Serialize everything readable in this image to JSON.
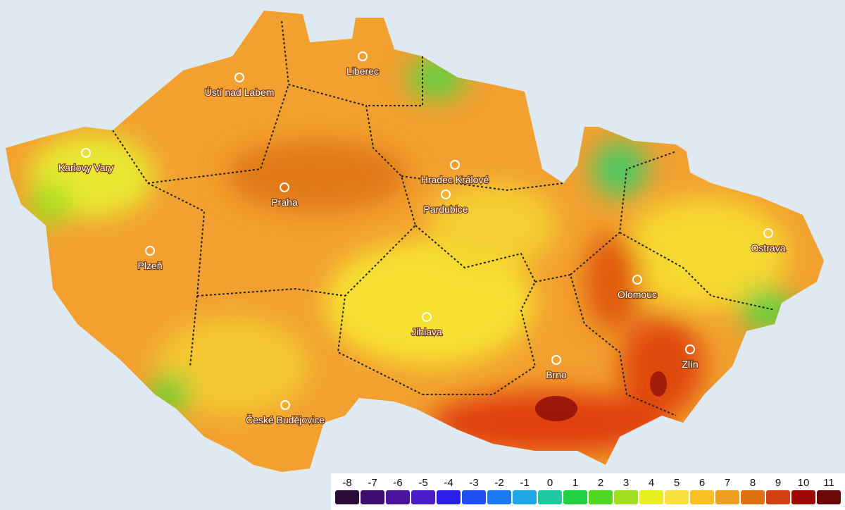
{
  "cities": [
    {
      "name": "Liberec"
    },
    {
      "name": "Ústí nad Labem"
    },
    {
      "name": "Karlovy Vary"
    },
    {
      "name": "Praha"
    },
    {
      "name": "Hradec Králové"
    },
    {
      "name": "Pardubice"
    },
    {
      "name": "Plzeň"
    },
    {
      "name": "Ostrava"
    },
    {
      "name": "Olomouc"
    },
    {
      "name": "Jihlava"
    },
    {
      "name": "Brno"
    },
    {
      "name": "Zlín"
    },
    {
      "name": "České Budějovice"
    }
  ],
  "legend": {
    "ticks": [
      -8,
      -7,
      -6,
      -5,
      -4,
      -3,
      -2,
      -1,
      0,
      1,
      2,
      3,
      4,
      5,
      6,
      7,
      8,
      9,
      10,
      11
    ],
    "colors": [
      "#2a0a3a",
      "#3d0c6e",
      "#4b12a0",
      "#4a1cc8",
      "#2a1fe8",
      "#1e4ef0",
      "#1a78f0",
      "#1ea8e8",
      "#1ec8a0",
      "#20d040",
      "#50d820",
      "#a0e020",
      "#e8f020",
      "#f8e040",
      "#f8c020",
      "#f0a020",
      "#e07010",
      "#d04010",
      "#a00808",
      "#6a0808"
    ]
  }
}
